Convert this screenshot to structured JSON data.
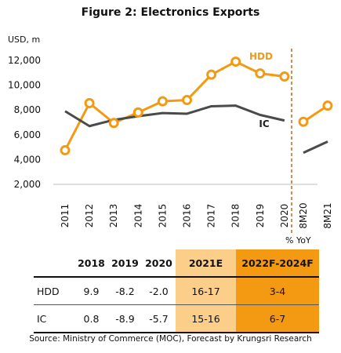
{
  "chart_data": {
    "type": "line",
    "title": "Figure 2: Electronics Exports",
    "ylabel": "USD, m",
    "ylim": [
      2000,
      12000
    ],
    "yticks": [
      "2,000",
      "4,000",
      "6,000",
      "8,000",
      "10,000",
      "12,000"
    ],
    "categories": [
      "2011",
      "2012",
      "2013",
      "2014",
      "2015",
      "2016",
      "2017",
      "2018",
      "2019",
      "2020",
      "8M20",
      "8M21"
    ],
    "series": [
      {
        "name": "HDD",
        "color": "#f39a12",
        "marker": "circle",
        "annual": [
          4750,
          8550,
          6950,
          7800,
          8700,
          8800,
          10850,
          11900,
          10950,
          10700
        ],
        "ytd": [
          7050,
          8350
        ]
      },
      {
        "name": "IC",
        "color": "#4a4a4a",
        "annual": [
          7900,
          6700,
          7200,
          7500,
          7750,
          7700,
          8300,
          8350,
          7600,
          7150
        ],
        "ytd": [
          4550,
          5450
        ]
      }
    ],
    "divider": "dashed vertical line between 2020 and 8M20",
    "grid": false
  },
  "yoy_table": {
    "label": "% YoY",
    "headers": [
      "",
      "2018",
      "2019",
      "2020",
      "2021E",
      "2022F-2024F"
    ],
    "rows": [
      {
        "label": "HDD",
        "values": [
          "9.9",
          "-8.2",
          "-2.0",
          "16-17",
          "3-4"
        ]
      },
      {
        "label": "IC",
        "values": [
          "0.8",
          "-8.9",
          "-5.7",
          "15-16",
          "6-7"
        ]
      }
    ]
  },
  "source": "Source: Ministry of Commerce (MOC), Forecast by Krungsri Research"
}
